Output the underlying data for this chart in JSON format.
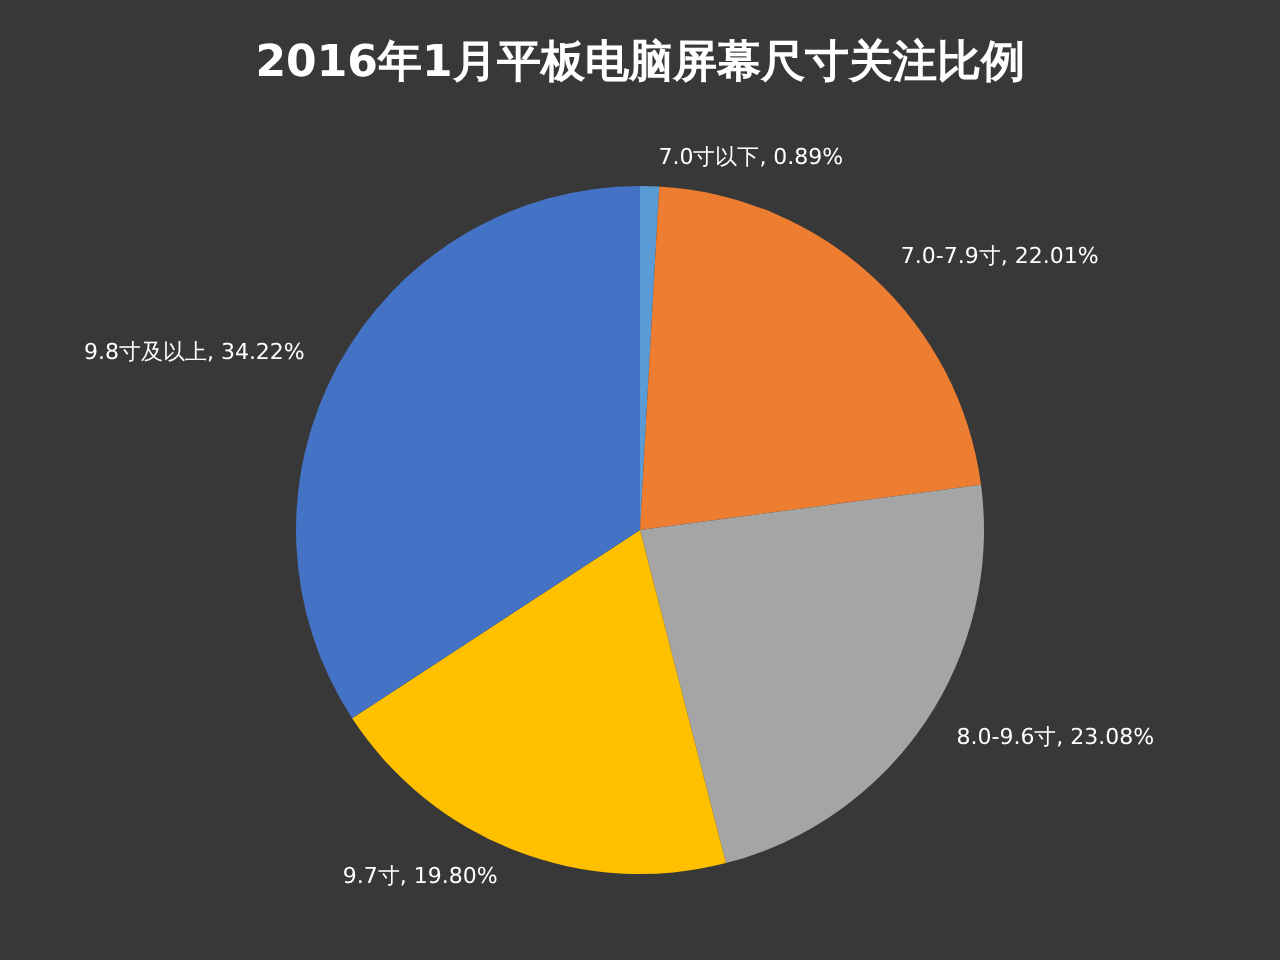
{
  "chart_data": {
    "type": "pie",
    "title": "2016年1月平板电脑屏幕尺寸关注比例",
    "categories": [
      "7.0寸以下",
      "7.0-7.9寸",
      "8.0-9.6寸",
      "9.7寸",
      "9.8寸及以上"
    ],
    "values": [
      0.89,
      22.01,
      23.08,
      19.8,
      34.22
    ],
    "value_labels": [
      "0.89%",
      "22.01%",
      "23.08%",
      "19.80%",
      "34.22%"
    ],
    "colors": [
      "#5b9bd5",
      "#ed7d31",
      "#a5a5a5",
      "#ffc000",
      "#4472c4"
    ]
  }
}
